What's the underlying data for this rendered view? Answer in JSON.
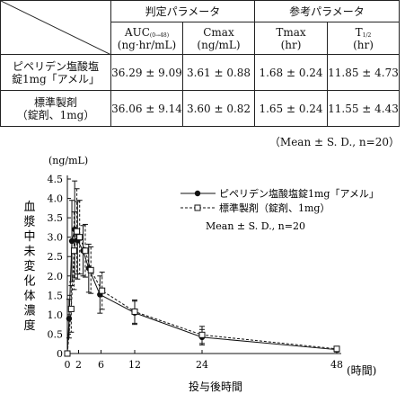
{
  "table": {
    "group_headers": [
      "判定パラメータ",
      "参考パラメータ"
    ],
    "columns": [
      {
        "name": "AUC",
        "sub": "(0→48)",
        "unit": "(ng·hr/mL)"
      },
      {
        "name": "Cmax",
        "sub": "",
        "unit": "(ng/mL)"
      },
      {
        "name": "Tmax",
        "sub": "",
        "unit": "(hr)"
      },
      {
        "name": "T",
        "sub": "1/2",
        "unit": "(hr)"
      }
    ],
    "rows": [
      {
        "label_line1": "ピペリデン塩酸塩",
        "label_line2": "錠1mg「アメル」",
        "values": [
          "36.29 ± 9.09",
          "3.61 ± 0.88",
          "1.68 ± 0.24",
          "11.85 ± 4.73"
        ]
      },
      {
        "label_line1": "標準製剤",
        "label_line2": "（錠剤、1mg）",
        "values": [
          "36.06 ± 9.14",
          "3.60 ± 0.82",
          "1.65 ± 0.24",
          "11.55 ± 4.43"
        ]
      }
    ],
    "note": "（Mean ± S. D., n=20）"
  },
  "chart_data": {
    "type": "line",
    "y_unit": "(ng/mL)",
    "ylabel": "血漿中未変化体濃度",
    "xlabel": "投与後時間",
    "x_unit": "(時間)",
    "x_ticks": [
      0,
      2,
      6,
      12,
      24,
      48
    ],
    "x_tick_labels": [
      "0",
      "2",
      "6",
      "12",
      "24",
      "48"
    ],
    "y_ticks": [
      0,
      0.5,
      1.0,
      1.5,
      2.0,
      2.5,
      3.0,
      3.5,
      4.0,
      4.5
    ],
    "y_tick_labels": [
      "0",
      "0.5",
      "1.0",
      "1.5",
      "2.0",
      "2.5",
      "3.0",
      "3.5",
      "4.0",
      "4.5"
    ],
    "xlim": [
      0,
      48
    ],
    "ylim": [
      0,
      4.5
    ],
    "legend_position": "top-right",
    "legend_note": "Mean ± S. D., n=20",
    "series": [
      {
        "name": "ピペリデン塩酸塩錠1mg「アメル」",
        "marker": "filled-circle",
        "line": "solid",
        "x": [
          0,
          0.5,
          1,
          1.5,
          2,
          3,
          4,
          6,
          12,
          24,
          48
        ],
        "y": [
          0,
          0.9,
          2.9,
          3.2,
          2.92,
          2.65,
          2.2,
          1.52,
          1.05,
          0.42,
          0.1
        ],
        "sd": [
          0,
          0.5,
          1.05,
          1.25,
          1.0,
          0.65,
          0.62,
          0.48,
          0.3,
          0.2,
          0.06
        ]
      },
      {
        "name": "標準製剤（錠剤、1mg）",
        "marker": "open-square",
        "line": "dashed",
        "x": [
          0,
          0.5,
          1,
          1.5,
          2,
          3,
          4,
          6,
          12,
          24,
          48
        ],
        "y": [
          0,
          1.15,
          2.65,
          3.15,
          3.0,
          2.65,
          2.15,
          1.62,
          1.08,
          0.48,
          0.12
        ],
        "sd": [
          0,
          0.6,
          1.0,
          1.1,
          0.95,
          0.68,
          0.6,
          0.48,
          0.3,
          0.22,
          0.06
        ]
      }
    ]
  }
}
